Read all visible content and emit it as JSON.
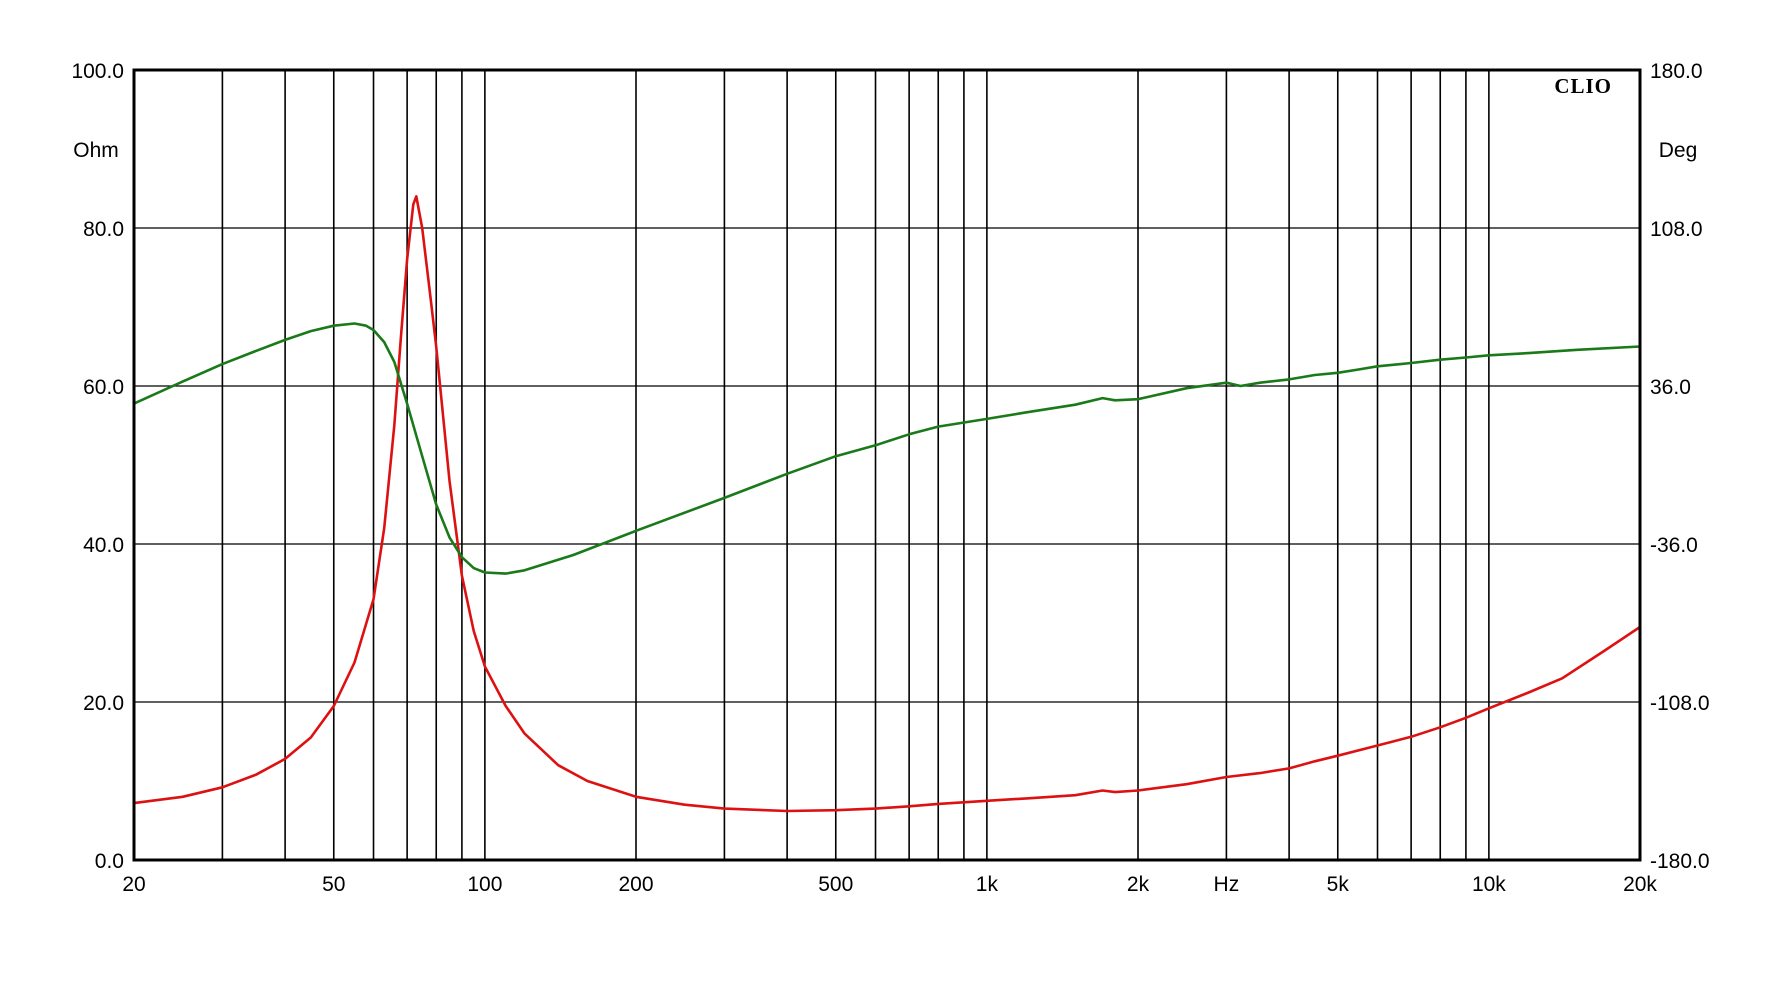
{
  "chart_data": {
    "type": "line",
    "brand": "CLIO",
    "x_scale": "log",
    "xlim": [
      20,
      20000
    ],
    "x_axis_unit": "Hz",
    "x_tick_labels": [
      {
        "value": 20,
        "label": "20"
      },
      {
        "value": 50,
        "label": "50"
      },
      {
        "value": 100,
        "label": "100"
      },
      {
        "value": 200,
        "label": "200"
      },
      {
        "value": 500,
        "label": "500"
      },
      {
        "value": 1000,
        "label": "1k"
      },
      {
        "value": 2000,
        "label": "2k"
      },
      {
        "value": 5000,
        "label": "5k"
      },
      {
        "value": 10000,
        "label": "10k"
      },
      {
        "value": 20000,
        "label": "20k"
      }
    ],
    "x_gridlines": [
      30,
      40,
      50,
      60,
      70,
      80,
      90,
      100,
      200,
      300,
      400,
      500,
      600,
      700,
      800,
      900,
      1000,
      2000,
      3000,
      4000,
      5000,
      6000,
      7000,
      8000,
      9000,
      10000,
      20000
    ],
    "y_left": {
      "unit": "Ohm",
      "ylim": [
        0,
        100
      ],
      "ticks": [
        {
          "value": 0,
          "label": "0.0"
        },
        {
          "value": 20,
          "label": "20.0"
        },
        {
          "value": 40,
          "label": "40.0"
        },
        {
          "value": 60,
          "label": "60.0"
        },
        {
          "value": 80,
          "label": "80.0"
        },
        {
          "value": 100,
          "label": "100.0"
        }
      ]
    },
    "y_right": {
      "unit": "Deg",
      "ylim": [
        -180,
        180
      ],
      "ticks": [
        {
          "value": -180,
          "label": "-180.0"
        },
        {
          "value": -108,
          "label": "-108.0"
        },
        {
          "value": -36,
          "label": "-36.0"
        },
        {
          "value": 36,
          "label": "36.0"
        },
        {
          "value": 108,
          "label": "108.0"
        },
        {
          "value": 180,
          "label": "180.0"
        }
      ]
    },
    "grid": true,
    "series": [
      {
        "axis": "left",
        "color": "#dd1111",
        "points": [
          [
            20,
            7.2
          ],
          [
            25,
            8.0
          ],
          [
            30,
            9.2
          ],
          [
            35,
            10.8
          ],
          [
            40,
            12.8
          ],
          [
            45,
            15.5
          ],
          [
            50,
            19.5
          ],
          [
            55,
            25.0
          ],
          [
            60,
            33.0
          ],
          [
            63,
            42.0
          ],
          [
            66,
            55.0
          ],
          [
            68,
            66.0
          ],
          [
            70,
            76.0
          ],
          [
            72,
            83.0
          ],
          [
            73,
            84.0
          ],
          [
            75,
            80.0
          ],
          [
            78,
            71.0
          ],
          [
            80,
            65.0
          ],
          [
            85,
            48.0
          ],
          [
            90,
            36.0
          ],
          [
            95,
            29.0
          ],
          [
            100,
            24.5
          ],
          [
            110,
            19.5
          ],
          [
            120,
            16.0
          ],
          [
            140,
            12.0
          ],
          [
            160,
            10.0
          ],
          [
            200,
            8.0
          ],
          [
            250,
            7.0
          ],
          [
            300,
            6.5
          ],
          [
            400,
            6.2
          ],
          [
            500,
            6.3
          ],
          [
            600,
            6.5
          ],
          [
            700,
            6.8
          ],
          [
            800,
            7.1
          ],
          [
            1000,
            7.5
          ],
          [
            1200,
            7.8
          ],
          [
            1500,
            8.2
          ],
          [
            1700,
            8.8
          ],
          [
            1800,
            8.6
          ],
          [
            2000,
            8.8
          ],
          [
            2500,
            9.6
          ],
          [
            3000,
            10.5
          ],
          [
            3500,
            11.0
          ],
          [
            4000,
            11.6
          ],
          [
            4500,
            12.5
          ],
          [
            5000,
            13.2
          ],
          [
            6000,
            14.5
          ],
          [
            7000,
            15.6
          ],
          [
            8000,
            16.8
          ],
          [
            9000,
            18.0
          ],
          [
            10000,
            19.2
          ],
          [
            12000,
            21.2
          ],
          [
            14000,
            23.0
          ],
          [
            17000,
            26.5
          ],
          [
            20000,
            29.5
          ],
          [
            21000,
            30.8
          ]
        ]
      },
      {
        "axis": "right",
        "color": "#1a7a1a",
        "points": [
          [
            20,
            28.0
          ],
          [
            25,
            38.0
          ],
          [
            30,
            46.0
          ],
          [
            35,
            52.0
          ],
          [
            40,
            57.0
          ],
          [
            45,
            61.0
          ],
          [
            50,
            63.5
          ],
          [
            55,
            64.5
          ],
          [
            58,
            63.5
          ],
          [
            60,
            61.5
          ],
          [
            63,
            56.0
          ],
          [
            66,
            47.0
          ],
          [
            70,
            28.0
          ],
          [
            75,
            4.0
          ],
          [
            80,
            -18.0
          ],
          [
            85,
            -33.0
          ],
          [
            90,
            -42.0
          ],
          [
            95,
            -47.0
          ],
          [
            100,
            -49.0
          ],
          [
            110,
            -49.5
          ],
          [
            120,
            -48.0
          ],
          [
            150,
            -41.0
          ],
          [
            200,
            -30.0
          ],
          [
            300,
            -15.0
          ],
          [
            400,
            -4.0
          ],
          [
            500,
            4.0
          ],
          [
            600,
            9.0
          ],
          [
            700,
            14.0
          ],
          [
            800,
            17.5
          ],
          [
            1000,
            21.0
          ],
          [
            1200,
            24.0
          ],
          [
            1500,
            27.5
          ],
          [
            1700,
            30.5
          ],
          [
            1800,
            29.5
          ],
          [
            2000,
            30.0
          ],
          [
            2500,
            35.0
          ],
          [
            3000,
            37.5
          ],
          [
            3200,
            36.0
          ],
          [
            3500,
            37.5
          ],
          [
            4000,
            39.0
          ],
          [
            4500,
            41.0
          ],
          [
            5000,
            42.0
          ],
          [
            5500,
            43.5
          ],
          [
            6000,
            45.0
          ],
          [
            7000,
            46.5
          ],
          [
            8000,
            48.0
          ],
          [
            9000,
            49.0
          ],
          [
            10000,
            50.0
          ],
          [
            12000,
            51.0
          ],
          [
            15000,
            52.5
          ],
          [
            20000,
            54.0
          ],
          [
            21000,
            54.5
          ]
        ]
      }
    ]
  }
}
